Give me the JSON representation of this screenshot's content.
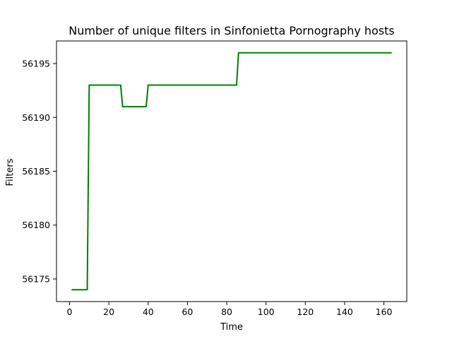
{
  "chart_data": {
    "type": "line",
    "title": "Number of unique filters in Sinfonietta Pornography hosts",
    "xlabel": "Time",
    "ylabel": "Filters",
    "xlim": [
      -6.65,
      171.65
    ],
    "ylim": [
      56172.9,
      56197.1
    ],
    "xticks": [
      0,
      20,
      40,
      60,
      80,
      100,
      120,
      140,
      160
    ],
    "yticks": [
      56175,
      56180,
      56185,
      56190,
      56195
    ],
    "grid": false,
    "series": [
      {
        "color": "#008000",
        "x": [
          1,
          9,
          10,
          26,
          27,
          39,
          40,
          85,
          86,
          164
        ],
        "y": [
          56174,
          56174,
          56193,
          56193,
          56191,
          56191,
          56193,
          56193,
          56196,
          56196
        ]
      }
    ]
  }
}
